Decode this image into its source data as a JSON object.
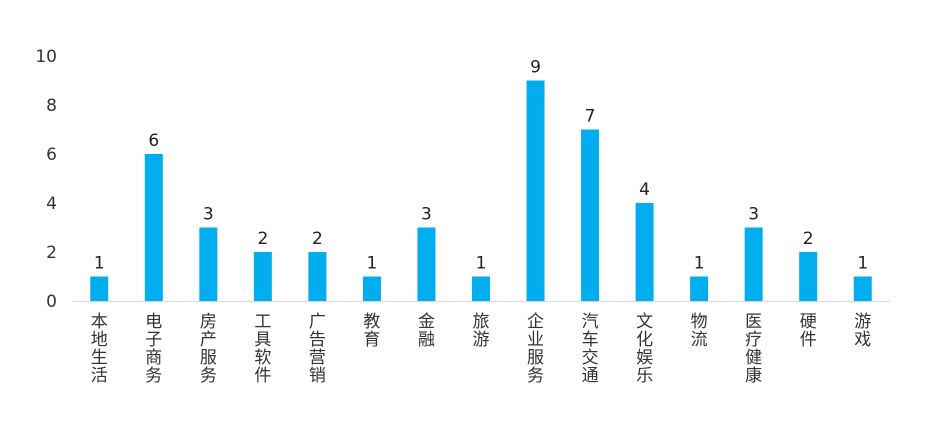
{
  "chart_data": {
    "type": "bar",
    "categories": [
      "本地生活",
      "电子商务",
      "房产服务",
      "工具软件",
      "广告营销",
      "教育",
      "金融",
      "旅游",
      "企业服务",
      "汽车交通",
      "文化娱乐",
      "物流",
      "医疗健康",
      "硬件",
      "游戏"
    ],
    "values": [
      1,
      6,
      3,
      2,
      2,
      1,
      3,
      1,
      9,
      7,
      4,
      1,
      3,
      2,
      1
    ],
    "ylim": [
      0,
      10
    ],
    "yticks": [
      0,
      2,
      4,
      6,
      8,
      10
    ],
    "data_labels": true,
    "grid": false,
    "legend": "none",
    "bar_color": "#00AEEF",
    "axis_color": "#D9D9D9",
    "label_orientation": "vertical"
  }
}
